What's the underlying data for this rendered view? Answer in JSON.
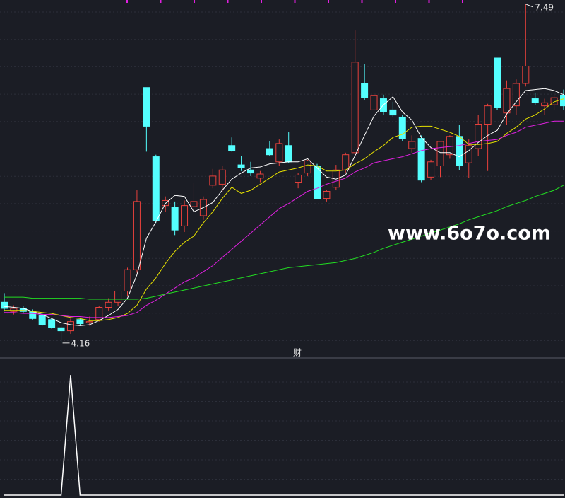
{
  "chart_data": {
    "type": "candlestick",
    "open": [
      4.56,
      4.47,
      4.5,
      4.47,
      4.43,
      4.39,
      4.31,
      4.28,
      4.39,
      4.36,
      4.39,
      4.51,
      4.56,
      4.67,
      4.88,
      6.67,
      5.99,
      5.51,
      5.49,
      5.31,
      5.5,
      5.41,
      5.71,
      5.72,
      6.1,
      5.91,
      5.86,
      5.78,
      6.07,
      5.94,
      6.1,
      5.74,
      5.83,
      5.9,
      5.58,
      5.69,
      5.86,
      6.03,
      6.71,
      6.45,
      6.56,
      6.45,
      6.38,
      6.07,
      6.17,
      5.79,
      5.9,
      6.01,
      6.19,
      5.93,
      6.07,
      6.31,
      6.96,
      6.42,
      6.49,
      6.71,
      6.56,
      6.49,
      6.5,
      6.59
    ],
    "high": [
      4.65,
      4.53,
      4.52,
      4.49,
      4.45,
      4.41,
      4.33,
      4.4,
      4.41,
      4.42,
      4.52,
      4.6,
      4.67,
      4.9,
      5.66,
      6.67,
      6.01,
      5.6,
      5.55,
      5.56,
      5.73,
      5.6,
      5.87,
      5.9,
      6.18,
      6.0,
      5.94,
      5.85,
      6.14,
      6.16,
      6.23,
      5.83,
      5.96,
      5.92,
      5.66,
      5.91,
      6.03,
      7.23,
      6.9,
      6.6,
      6.6,
      6.53,
      6.4,
      6.2,
      6.2,
      5.96,
      6.14,
      6.2,
      6.3,
      6.16,
      6.4,
      6.51,
      6.96,
      6.74,
      6.75,
      7.49,
      6.62,
      6.56,
      6.6,
      6.65
    ],
    "low": [
      4.47,
      4.44,
      4.45,
      4.39,
      4.33,
      4.3,
      4.16,
      4.25,
      4.33,
      4.33,
      4.37,
      4.48,
      4.52,
      4.62,
      4.85,
      6.04,
      5.34,
      5.45,
      5.22,
      5.25,
      5.45,
      5.37,
      5.68,
      5.65,
      6.04,
      5.85,
      5.8,
      5.74,
      6.0,
      5.9,
      5.93,
      5.68,
      5.8,
      5.57,
      5.55,
      5.66,
      5.83,
      6.0,
      6.55,
      6.4,
      6.4,
      6.38,
      6.14,
      6.03,
      5.74,
      5.76,
      5.79,
      5.97,
      5.86,
      5.78,
      6.0,
      5.85,
      6.45,
      6.3,
      6.4,
      6.68,
      6.5,
      6.4,
      6.45,
      6.45
    ],
    "close": [
      4.5,
      4.5,
      4.47,
      4.4,
      4.34,
      4.31,
      4.28,
      4.37,
      4.35,
      4.37,
      4.51,
      4.56,
      4.67,
      4.88,
      5.55,
      6.29,
      5.36,
      5.56,
      5.27,
      5.51,
      5.55,
      5.57,
      5.8,
      5.86,
      6.05,
      5.88,
      5.83,
      5.82,
      6.01,
      6.12,
      5.94,
      5.81,
      5.95,
      5.58,
      5.65,
      5.86,
      6.01,
      6.92,
      6.57,
      6.59,
      6.43,
      6.4,
      6.17,
      6.14,
      5.76,
      5.94,
      6.14,
      6.19,
      5.9,
      6.1,
      6.31,
      6.49,
      6.47,
      6.66,
      6.71,
      6.88,
      6.52,
      6.52,
      6.57,
      6.49
    ],
    "up_color": "#e8413c",
    "down_color": "#54ffff",
    "series": [
      {
        "color": "#ffffff",
        "values": [
          4.52,
          4.51,
          4.5,
          4.47,
          4.44,
          4.4,
          4.36,
          4.34,
          4.33,
          4.34,
          4.38,
          4.43,
          4.49,
          4.6,
          4.83,
          5.19,
          5.35,
          5.53,
          5.61,
          5.6,
          5.45,
          5.49,
          5.54,
          5.66,
          5.77,
          5.83,
          5.88,
          5.89,
          5.92,
          5.93,
          5.94,
          5.94,
          5.97,
          5.88,
          5.79,
          5.77,
          5.81,
          6.0,
          6.2,
          6.39,
          6.5,
          6.58,
          6.43,
          6.35,
          6.18,
          6.08,
          6.03,
          6.03,
          5.99,
          6.05,
          6.13,
          6.2,
          6.25,
          6.41,
          6.53,
          6.64,
          6.65,
          6.66,
          6.64,
          6.6
        ]
      },
      {
        "color": "#e6e000",
        "values": [
          4.48,
          4.48,
          4.48,
          4.47,
          4.46,
          4.45,
          4.43,
          4.41,
          4.4,
          4.38,
          4.38,
          4.39,
          4.41,
          4.45,
          4.53,
          4.69,
          4.8,
          4.94,
          5.06,
          5.15,
          5.21,
          5.34,
          5.45,
          5.58,
          5.69,
          5.63,
          5.66,
          5.72,
          5.78,
          5.84,
          5.86,
          5.88,
          5.91,
          5.9,
          5.85,
          5.85,
          5.86,
          5.92,
          5.97,
          6.04,
          6.1,
          6.18,
          6.21,
          6.28,
          6.29,
          6.29,
          6.26,
          6.23,
          6.19,
          6.11,
          6.11,
          6.12,
          6.14,
          6.22,
          6.28,
          6.36,
          6.4,
          6.46,
          6.53,
          6.56
        ]
      },
      {
        "color": "#e020e0",
        "values": [
          4.46,
          4.46,
          4.45,
          4.45,
          4.44,
          4.44,
          4.43,
          4.42,
          4.42,
          4.41,
          4.41,
          4.41,
          4.42,
          4.43,
          4.46,
          4.53,
          4.58,
          4.64,
          4.7,
          4.76,
          4.8,
          4.86,
          4.92,
          5.0,
          5.08,
          5.16,
          5.24,
          5.32,
          5.4,
          5.48,
          5.53,
          5.59,
          5.65,
          5.68,
          5.72,
          5.75,
          5.78,
          5.84,
          5.88,
          5.93,
          5.95,
          5.97,
          5.99,
          6.02,
          6.05,
          6.07,
          6.08,
          6.09,
          6.1,
          6.12,
          6.14,
          6.15,
          6.16,
          6.2,
          6.23,
          6.28,
          6.3,
          6.32,
          6.34,
          6.34
        ]
      },
      {
        "color": "#22dd22",
        "values": [
          4.61,
          4.61,
          4.61,
          4.6,
          4.6,
          4.6,
          4.6,
          4.6,
          4.6,
          4.59,
          4.59,
          4.59,
          4.59,
          4.59,
          4.59,
          4.6,
          4.62,
          4.64,
          4.66,
          4.68,
          4.7,
          4.72,
          4.74,
          4.76,
          4.78,
          4.8,
          4.82,
          4.84,
          4.86,
          4.88,
          4.9,
          4.91,
          4.92,
          4.93,
          4.94,
          4.95,
          4.97,
          4.99,
          5.02,
          5.05,
          5.09,
          5.12,
          5.15,
          5.18,
          5.21,
          5.24,
          5.27,
          5.3,
          5.33,
          5.37,
          5.4,
          5.43,
          5.46,
          5.5,
          5.53,
          5.56,
          5.6,
          5.63,
          5.66,
          5.71
        ]
      }
    ],
    "ylim": [
      4.02,
      7.53
    ],
    "max_label": 7.49,
    "min_label": 4.16,
    "panel_label": "财",
    "watermark": "www.6o7o.com",
    "indicator": {
      "color": "#ffffff",
      "ylim": [
        0,
        1.13
      ],
      "values": [
        0,
        0,
        0,
        0,
        0,
        0,
        0,
        1,
        0,
        0,
        0,
        0,
        0,
        0,
        0,
        0,
        0,
        0,
        0,
        0,
        0,
        0,
        0,
        0,
        0,
        0,
        0,
        0,
        0,
        0,
        0,
        0,
        0,
        0,
        0,
        0,
        0,
        0,
        0,
        0,
        0,
        0,
        0,
        0,
        0,
        0,
        0,
        0,
        0,
        0,
        0,
        0,
        0,
        0,
        0,
        0,
        0,
        0,
        0,
        0
      ]
    }
  }
}
